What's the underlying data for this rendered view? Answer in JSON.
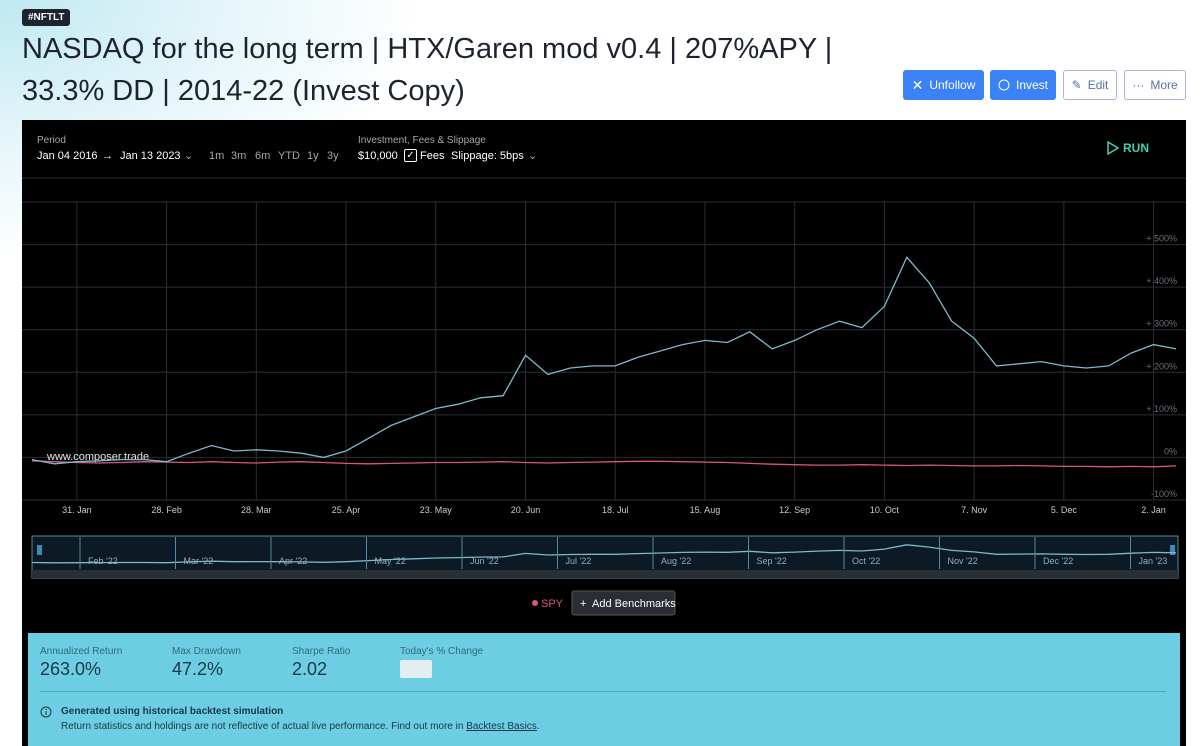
{
  "header": {
    "tag": "#NFTLT",
    "title": "NASDAQ for the long term | HTX/Garen mod v0.4 | 207%APY | 33.3% DD | 2014-22 (Invest Copy)",
    "buttons": [
      "Unfollow",
      "Invest",
      "Edit",
      "More"
    ]
  },
  "controls": {
    "period_label": "Period",
    "start": "Jan 04 2016",
    "end": "Jan 13 2023",
    "ranges": [
      "1m",
      "3m",
      "6m",
      "YTD",
      "1y",
      "3y"
    ],
    "investment_label": "Investment, Fees & Slippage",
    "amount": "$10,000",
    "fees": "Fees",
    "slippage": "Slippage: 5bps",
    "run": "RUN"
  },
  "chart_data": {
    "type": "line",
    "watermark": "www.composer.trade",
    "categories": [
      null,
      null,
      "31. Jan",
      null,
      null,
      null,
      "28. Feb",
      null,
      null,
      null,
      "28. Mar",
      null,
      null,
      null,
      "25. Apr",
      null,
      null,
      null,
      "23. May",
      null,
      null,
      null,
      "20. Jun",
      null,
      null,
      null,
      "18. Jul",
      null,
      null,
      null,
      "15. Aug",
      null,
      null,
      null,
      "12. Sep",
      null,
      null,
      null,
      "10. Oct",
      null,
      null,
      null,
      "7. Nov",
      null,
      null,
      null,
      "5. Dec",
      null,
      null,
      null,
      "2. Jan",
      null
    ],
    "series": [
      {
        "color": "#7fb8c8",
        "values": [
          -5,
          -15,
          -10,
          -8,
          -5,
          -5,
          -10,
          10,
          28,
          15,
          18,
          15,
          10,
          0,
          15,
          45,
          75,
          95,
          115,
          125,
          140,
          145,
          240,
          195,
          210,
          215,
          215,
          235,
          250,
          265,
          275,
          270,
          295,
          255,
          275,
          300,
          320,
          305,
          355,
          470,
          410,
          320,
          280,
          215,
          220,
          225,
          215,
          210,
          215,
          245,
          265,
          255
        ]
      },
      {
        "name": "SPY",
        "color": "#d9577f",
        "values": [
          -8,
          -10,
          -12,
          -13,
          -12,
          -10,
          -11,
          -12,
          -10,
          -12,
          -13,
          -11,
          -10,
          -12,
          -14,
          -15,
          -14,
          -13,
          -12,
          -12,
          -11,
          -10,
          -12,
          -13,
          -12,
          -11,
          -10,
          -9,
          -9,
          -10,
          -11,
          -12,
          -14,
          -16,
          -17,
          -18,
          -18,
          -17,
          -18,
          -19,
          -18,
          -19,
          -20,
          -20,
          -19,
          -20,
          -21,
          -21,
          -22,
          -21,
          -22,
          -20
        ]
      }
    ],
    "ylim": [
      -100,
      600
    ],
    "yticks": [
      {
        "value": -100,
        "label": "-100%"
      },
      {
        "value": 0,
        "label": "0%"
      },
      {
        "value": 100,
        "label": "+ 100%"
      },
      {
        "value": 200,
        "label": "+ 200%"
      },
      {
        "value": 300,
        "label": "+ 300%"
      },
      {
        "value": 400,
        "label": "+ 400%"
      },
      {
        "value": 500,
        "label": "+ 500%"
      }
    ],
    "grid": true
  },
  "navigator": {
    "labels": [
      "Feb '22",
      "Mar '22",
      "Apr '22",
      "May '22",
      "Jun '22",
      "Jul '22",
      "Aug '22",
      "Sep '22",
      "Oct '22",
      "Nov '22",
      "Dec '22",
      "Jan '23"
    ]
  },
  "benchmarks": {
    "button": "Add Benchmarks"
  },
  "stats": [
    {
      "label": "Annualized Return",
      "value": "263.0%"
    },
    {
      "label": "Max Drawdown",
      "value": "47.2%"
    },
    {
      "label": "Sharpe Ratio",
      "value": "2.02"
    },
    {
      "label": "Today's % Change"
    }
  ],
  "notice": {
    "title": "Generated using historical backtest simulation",
    "text": "Return statistics and holdings are not reflective of actual live performance. Find out more in ",
    "link": "Backtest Basics",
    "end": "."
  }
}
